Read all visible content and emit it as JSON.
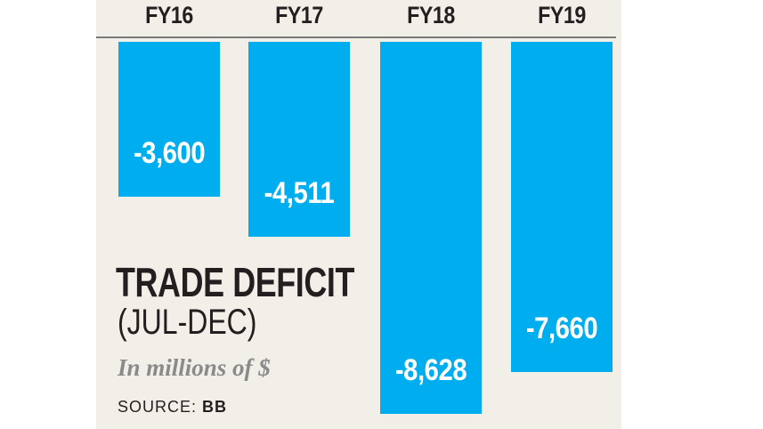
{
  "chart_data": {
    "type": "bar",
    "title": "TRADE DEFICIT",
    "subtitle": "(JUL-DEC)",
    "unit_note": "In millions of $",
    "source_label": "SOURCE:",
    "source_value": "BB",
    "categories": [
      "FY16",
      "FY17",
      "FY18",
      "FY19"
    ],
    "values": [
      -3600,
      -4511,
      -8628,
      -7660
    ],
    "value_labels": [
      "-3,600",
      "-4,511",
      "-8,628",
      "-7,660"
    ],
    "ylim": [
      -9000,
      0
    ],
    "colors": {
      "bar": "#00adef",
      "background": "#f2efe9",
      "text": "#231f20",
      "muted": "#8a8a8a"
    }
  }
}
